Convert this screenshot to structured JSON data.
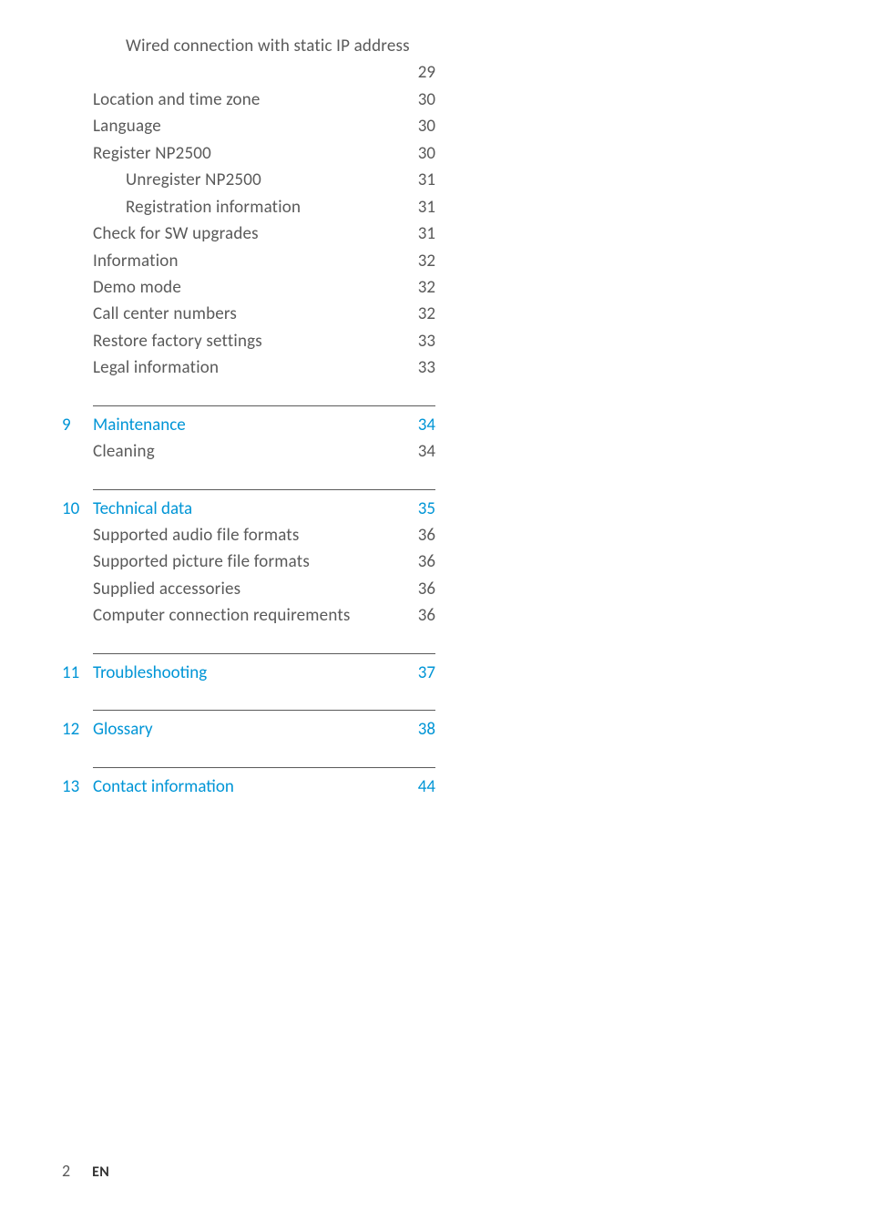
{
  "colors": {
    "text": "#5a5a5a",
    "accent": "#0095d6",
    "rule": "#5a5a5a",
    "background": "#ffffff"
  },
  "typography": {
    "body_fontsize_pt": 14,
    "heading_fontsize_pt": 14,
    "heading_weight": 500,
    "body_weight": 300,
    "font_family": "Gill Sans"
  },
  "toc": {
    "lead": [
      {
        "label": "Wired connection with static IP address",
        "page": "29",
        "indent": 2,
        "wrap": true
      },
      {
        "label": "Location and time zone",
        "page": "30",
        "indent": 1
      },
      {
        "label": "Language",
        "page": "30",
        "indent": 1
      },
      {
        "label": "Register NP2500",
        "page": "30",
        "indent": 1
      },
      {
        "label": "Unregister NP2500",
        "page": "31",
        "indent": 2
      },
      {
        "label": "Registration information",
        "page": "31",
        "indent": 2
      },
      {
        "label": "Check for SW upgrades",
        "page": "31",
        "indent": 1
      },
      {
        "label": "Information",
        "page": "32",
        "indent": 1
      },
      {
        "label": "Demo mode",
        "page": "32",
        "indent": 1
      },
      {
        "label": "Call center numbers",
        "page": "32",
        "indent": 1
      },
      {
        "label": "Restore factory settings",
        "page": "33",
        "indent": 1
      },
      {
        "label": "Legal information",
        "page": "33",
        "indent": 1
      }
    ],
    "sections": [
      {
        "num": "9",
        "title": "Maintenance",
        "page": "34",
        "items": [
          {
            "label": "Cleaning",
            "page": "34"
          }
        ]
      },
      {
        "num": "10",
        "title": "Technical data",
        "page": "35",
        "items": [
          {
            "label": "Supported audio file formats",
            "page": "36"
          },
          {
            "label": "Supported picture file formats",
            "page": "36"
          },
          {
            "label": "Supplied accessories",
            "page": "36"
          },
          {
            "label": "Computer connection requirements",
            "page": "36"
          }
        ]
      },
      {
        "num": "11",
        "title": "Troubleshooting",
        "page": "37",
        "items": []
      },
      {
        "num": "12",
        "title": "Glossary",
        "page": "38",
        "items": []
      },
      {
        "num": "13",
        "title": "Contact information",
        "page": "44",
        "items": []
      }
    ]
  },
  "footer": {
    "page_number": "2",
    "language": "EN"
  }
}
